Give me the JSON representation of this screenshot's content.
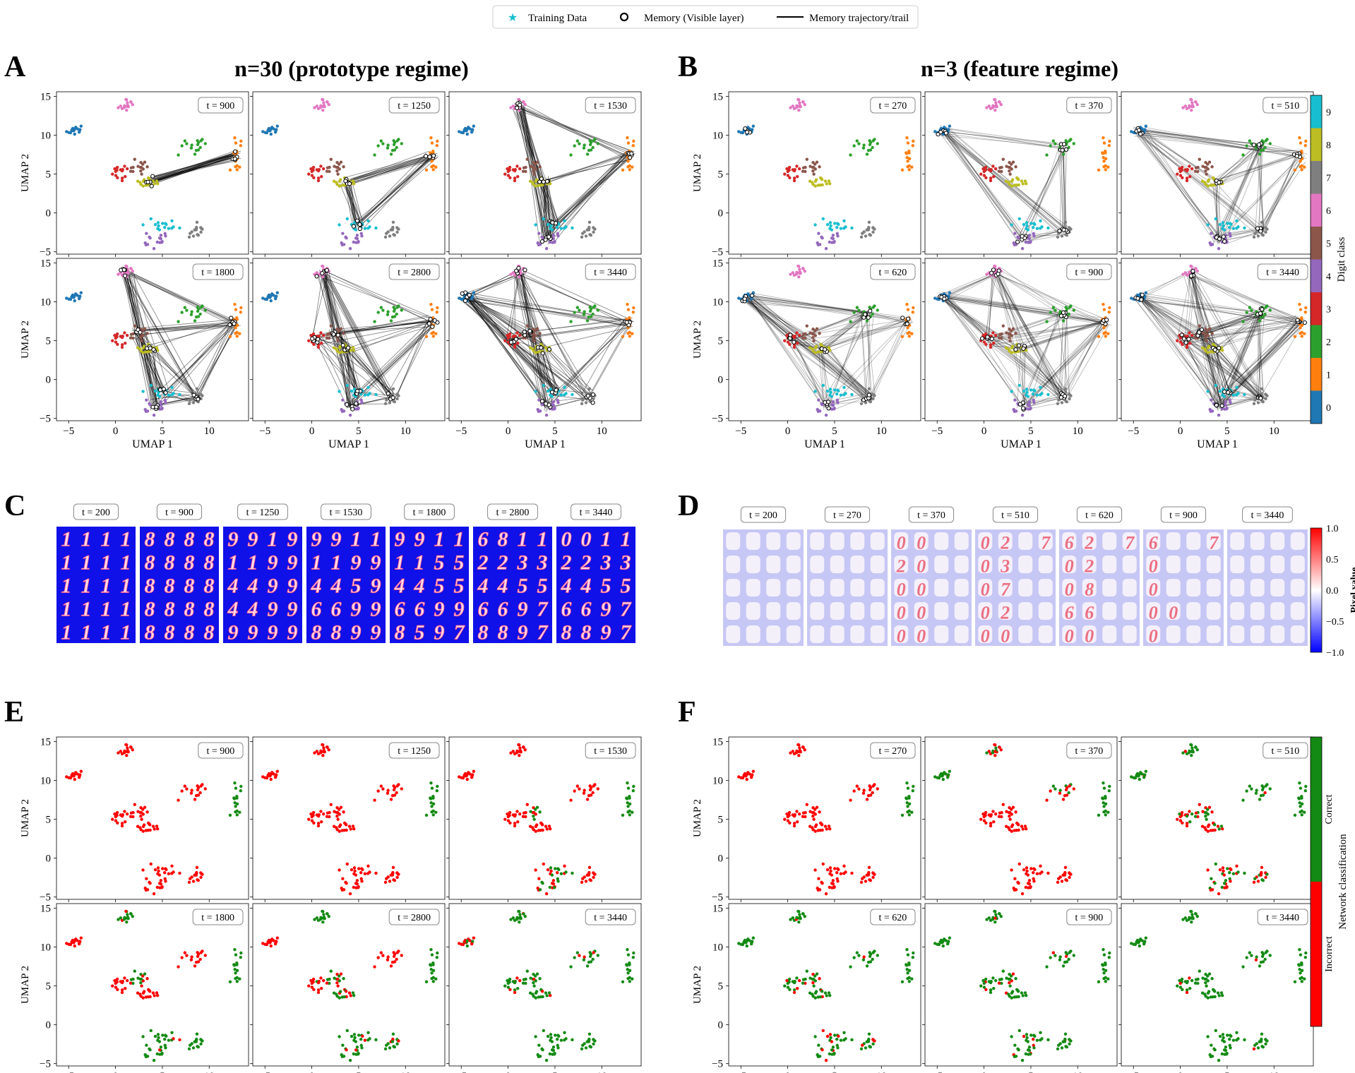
{
  "legend": {
    "training_data": "Training Data",
    "memory_visible": "Memory (Visible layer)",
    "memory_trajectory": "Memory trajectory/trail"
  },
  "panel_letters": [
    "A",
    "B",
    "C",
    "D",
    "E",
    "F"
  ],
  "titles": {
    "A": "n=30 (prototype regime)",
    "B": "n=3 (feature regime)"
  },
  "axis": {
    "xlabel": "UMAP 1",
    "ylabel": "UMAP 2",
    "xticks": [
      "−5",
      "0",
      "5",
      "10"
    ],
    "yticks": [
      "15",
      "10",
      "5",
      "0",
      "−5"
    ]
  },
  "time_labels": {
    "A": [
      "t = 900",
      "t = 1250",
      "t = 1530",
      "t = 1800",
      "t = 2800",
      "t = 3440"
    ],
    "B": [
      "t = 270",
      "t = 370",
      "t = 510",
      "t = 620",
      "t = 900",
      "t = 3440"
    ],
    "C": [
      "t = 200",
      "t = 900",
      "t = 1250",
      "t = 1530",
      "t = 1800",
      "t = 2800",
      "t = 3440"
    ],
    "D": [
      "t = 200",
      "t = 270",
      "t = 370",
      "t = 510",
      "t = 620",
      "t = 900",
      "t = 3440"
    ],
    "E": [
      "t = 900",
      "t = 1250",
      "t = 1530",
      "t = 1800",
      "t = 2800",
      "t = 3440"
    ],
    "F": [
      "t = 270",
      "t = 370",
      "t = 510",
      "t = 620",
      "t = 900",
      "t = 3440"
    ]
  },
  "digit_colorbar": {
    "label": "Digit class",
    "ticks": [
      "0",
      "1",
      "2",
      "3",
      "4",
      "5",
      "6",
      "7",
      "8",
      "9"
    ],
    "colors": [
      "#1f77b4",
      "#ff7f0e",
      "#2ca02c",
      "#d62728",
      "#9467bd",
      "#8c564b",
      "#e377c2",
      "#7f7f7f",
      "#bcbd22",
      "#17becf"
    ]
  },
  "pixel_colorbar": {
    "label": "Pixel value",
    "ticks": [
      "1.0",
      "0.5",
      "0.0",
      "−0.5",
      "−1.0"
    ]
  },
  "classification_bar": {
    "label": "Network classification",
    "correct": "Correct",
    "incorrect": "Incorrect",
    "correct_color": "#138a13",
    "incorrect_color": "#ff0000"
  },
  "digit_grids": {
    "C": [
      [
        "1",
        "1",
        "1",
        "1",
        "1",
        "1",
        "1",
        "1",
        "1",
        "1",
        "1",
        "1",
        "1",
        "1",
        "1",
        "1",
        "1",
        "1",
        "1",
        "1"
      ],
      [
        "8",
        "8",
        "8",
        "8",
        "8",
        "8",
        "8",
        "8",
        "8",
        "8",
        "8",
        "8",
        "8",
        "8",
        "8",
        "8",
        "8",
        "8",
        "8",
        "8"
      ],
      [
        "9",
        "9",
        "1",
        "9",
        "1",
        "1",
        "9",
        "9",
        "4",
        "4",
        "9",
        "9",
        "4",
        "4",
        "9",
        "9",
        "9",
        "9",
        "9",
        "9"
      ],
      [
        "9",
        "9",
        "1",
        "1",
        "1",
        "1",
        "9",
        "9",
        "4",
        "4",
        "5",
        "9",
        "6",
        "6",
        "9",
        "9",
        "8",
        "8",
        "9",
        "9"
      ],
      [
        "9",
        "9",
        "1",
        "1",
        "1",
        "1",
        "5",
        "5",
        "4",
        "4",
        "5",
        "5",
        "6",
        "6",
        "9",
        "9",
        "8",
        "5",
        "9",
        "7"
      ],
      [
        "6",
        "8",
        "1",
        "1",
        "2",
        "2",
        "3",
        "3",
        "4",
        "4",
        "5",
        "5",
        "6",
        "6",
        "9",
        "7",
        "8",
        "8",
        "9",
        "7"
      ],
      [
        "0",
        "0",
        "1",
        "1",
        "2",
        "2",
        "3",
        "3",
        "4",
        "4",
        "5",
        "5",
        "6",
        "6",
        "9",
        "7",
        "8",
        "8",
        "9",
        "7"
      ]
    ],
    "D": [
      [
        "",
        "",
        "",
        "",
        "",
        "",
        "",
        "",
        "",
        "",
        "",
        "",
        "",
        "",
        "",
        "",
        "",
        "",
        "",
        ""
      ],
      [
        "",
        "",
        "",
        "",
        "",
        "",
        "",
        "",
        "",
        "",
        "",
        "",
        "",
        "",
        "",
        "",
        "",
        "",
        "",
        ""
      ],
      [
        "0",
        "0",
        "",
        "",
        "2",
        "0",
        "",
        "",
        "0",
        "0",
        "",
        "",
        "0",
        "0",
        "",
        "",
        "0",
        "0",
        "",
        ""
      ],
      [
        "0",
        "2",
        "",
        "7",
        "0",
        "3",
        "",
        "",
        "0",
        "7",
        "",
        "",
        "0",
        "2",
        "",
        "",
        "0",
        "0",
        "",
        ""
      ],
      [
        "6",
        "2",
        "",
        "7",
        "0",
        "2",
        "",
        "",
        "0",
        "8",
        "",
        "",
        "6",
        "6",
        "",
        "",
        "0",
        "0",
        "",
        ""
      ],
      [
        "6",
        "",
        "",
        "7",
        "0",
        "",
        "",
        "",
        "0",
        "",
        "",
        "",
        "0",
        "0",
        "",
        "",
        "0",
        "",
        "",
        ""
      ],
      [
        "",
        "",
        "",
        "",
        "",
        "",
        "",
        "",
        "",
        "",
        "",
        "",
        "",
        "",
        "",
        "",
        "",
        "",
        "",
        ""
      ]
    ]
  }
}
